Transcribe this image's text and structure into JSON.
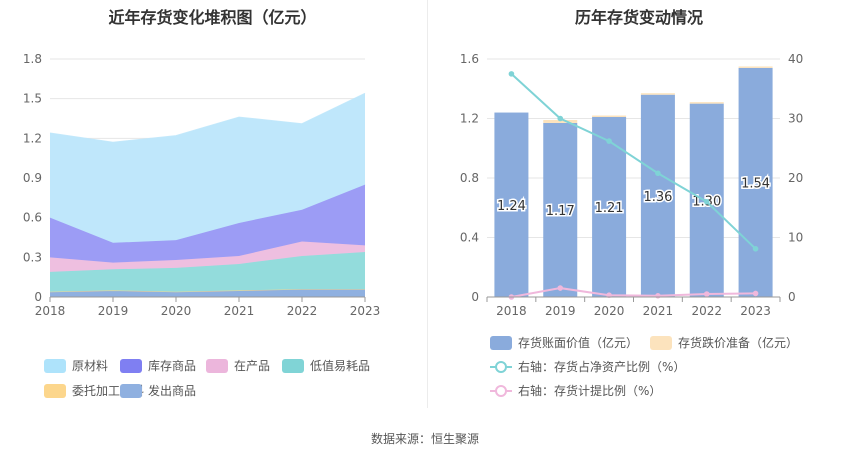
{
  "source_text": "数据来源：恒生聚源",
  "chart_data": [
    {
      "type": "area",
      "title": "近年存货变化堆积图（亿元）",
      "stacked": true,
      "x": [
        "2018",
        "2019",
        "2020",
        "2021",
        "2022",
        "2023"
      ],
      "yticks": [
        "0",
        "0.3",
        "0.6",
        "0.9",
        "1.2",
        "1.5",
        "1.8"
      ],
      "ylim": [
        0,
        1.8
      ],
      "grid": true,
      "legend_position": "bottom",
      "series": [
        {
          "name": "发出商品",
          "color": "#8fb0e0",
          "values": [
            0.04,
            0.05,
            0.04,
            0.05,
            0.06,
            0.06
          ]
        },
        {
          "name": "委托加工材料",
          "color": "#fcd68c",
          "values": [
            0.0,
            0.0,
            0.0,
            0.0,
            0.0,
            0.0
          ]
        },
        {
          "name": "低值易耗品",
          "color": "#93dcdc",
          "values": [
            0.15,
            0.16,
            0.18,
            0.2,
            0.25,
            0.28
          ]
        },
        {
          "name": "在产品",
          "color": "#eebfe0",
          "values": [
            0.11,
            0.05,
            0.06,
            0.06,
            0.11,
            0.05
          ]
        },
        {
          "name": "库存商品",
          "color": "#9c9cf5",
          "values": [
            0.3,
            0.15,
            0.15,
            0.25,
            0.24,
            0.46
          ]
        },
        {
          "name": "原材料",
          "color": "#bfe7fb",
          "values": [
            0.64,
            0.76,
            0.79,
            0.8,
            0.65,
            0.69
          ]
        }
      ],
      "legend": [
        {
          "name": "原材料",
          "color": "#aee3fb"
        },
        {
          "name": "库存商品",
          "color": "#7f7ff2"
        },
        {
          "name": "在产品",
          "color": "#ecb6dc"
        },
        {
          "name": "低值易耗品",
          "color": "#80d4d6"
        },
        {
          "name": "委托加工材料",
          "color": "#fcd68c"
        },
        {
          "name": "发出商品",
          "color": "#8fb0e0"
        }
      ]
    },
    {
      "type": "bar",
      "title": "历年存货变动情况",
      "categories": [
        "2018",
        "2019",
        "2020",
        "2021",
        "2022",
        "2023"
      ],
      "ylim_left": [
        0,
        1.6
      ],
      "yticks_left": [
        "0",
        "0.4",
        "0.8",
        "1.2",
        "1.6"
      ],
      "ylim_right": [
        0,
        40
      ],
      "yticks_right": [
        "0",
        "10",
        "20",
        "30",
        "40"
      ],
      "grid": true,
      "legend_position": "bottom",
      "bars": [
        {
          "name": "存货账面价值（亿元）",
          "color": "#8aabdc",
          "values": [
            1.24,
            1.17,
            1.21,
            1.36,
            1.3,
            1.54
          ],
          "labels": [
            "1.24",
            "1.17",
            "1.21",
            "1.36",
            "1.30",
            "1.54"
          ]
        },
        {
          "name": "存货跌价准备（亿元）",
          "color": "#fce3bd",
          "values": [
            0.0,
            0.02,
            0.01,
            0.01,
            0.01,
            0.01
          ]
        }
      ],
      "lines": [
        {
          "name": "右轴：存货占净资产比例（%）",
          "color": "#7fd3d6",
          "axis": "right",
          "values": [
            37.5,
            30.0,
            26.2,
            20.8,
            16.0,
            8.1
          ]
        },
        {
          "name": "右轴：存货计提比例（%）",
          "color": "#f0b8dc",
          "axis": "right",
          "values": [
            0.0,
            1.5,
            0.3,
            0.2,
            0.5,
            0.6
          ]
        }
      ]
    }
  ]
}
